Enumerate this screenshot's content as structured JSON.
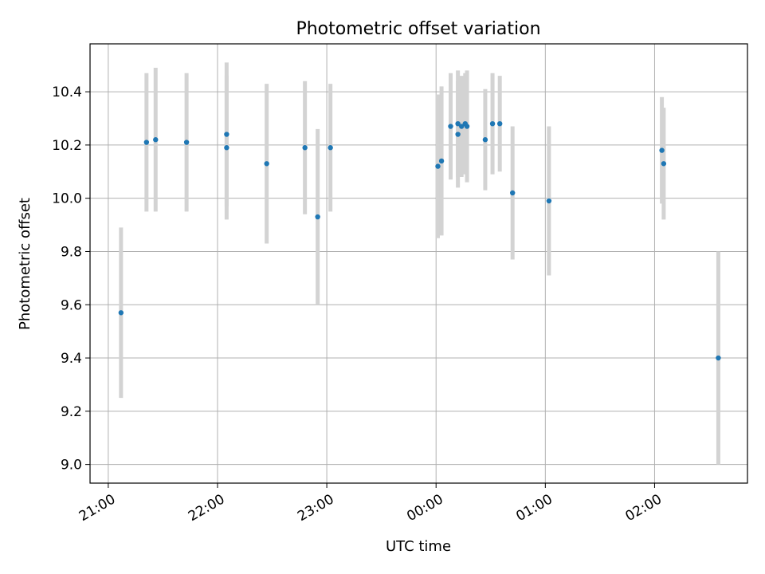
{
  "chart_data": {
    "type": "scatter",
    "title": "Photometric offset variation",
    "xlabel": "UTC time",
    "ylabel": "Photometric offset",
    "x_tick_labels": [
      "21:00",
      "22:00",
      "23:00",
      "00:00",
      "01:00",
      "02:00"
    ],
    "x_ticks": [
      "2000-01-01T21:00",
      "2000-01-01T22:00",
      "2000-01-01T23:00",
      "2000-01-02T00:00",
      "2000-01-02T01:00",
      "2000-01-02T02:00"
    ],
    "xlim": [
      "2000-01-01T20:50",
      "2000-01-02T02:51"
    ],
    "y_ticks": [
      9.0,
      9.2,
      9.4,
      9.6,
      9.8,
      10.0,
      10.2,
      10.4
    ],
    "ylim": [
      8.93,
      10.58
    ],
    "grid": true,
    "marker_color": "#1f77b4",
    "errorbar_color": "#d3d3d3",
    "points": [
      {
        "t": "2000-01-01T21:07",
        "y": 9.57,
        "err": 0.32
      },
      {
        "t": "2000-01-01T21:21",
        "y": 10.21,
        "err": 0.26
      },
      {
        "t": "2000-01-01T21:26",
        "y": 10.22,
        "err": 0.27
      },
      {
        "t": "2000-01-01T21:43",
        "y": 10.21,
        "err": 0.26
      },
      {
        "t": "2000-01-01T22:05",
        "y": 10.19,
        "err": 0.27
      },
      {
        "t": "2000-01-01T22:05",
        "y": 10.24,
        "err": 0.27
      },
      {
        "t": "2000-01-01T22:27",
        "y": 10.13,
        "err": 0.3
      },
      {
        "t": "2000-01-01T22:48",
        "y": 10.19,
        "err": 0.25
      },
      {
        "t": "2000-01-01T22:55",
        "y": 9.93,
        "err": 0.33
      },
      {
        "t": "2000-01-01T23:02",
        "y": 10.19,
        "err": 0.24
      },
      {
        "t": "2000-01-02T00:01",
        "y": 10.12,
        "err": 0.27
      },
      {
        "t": "2000-01-02T00:03",
        "y": 10.14,
        "err": 0.28
      },
      {
        "t": "2000-01-02T00:08",
        "y": 10.27,
        "err": 0.2
      },
      {
        "t": "2000-01-02T00:12",
        "y": 10.28,
        "err": 0.2
      },
      {
        "t": "2000-01-02T00:12",
        "y": 10.24,
        "err": 0.2
      },
      {
        "t": "2000-01-02T00:14",
        "y": 10.27,
        "err": 0.19
      },
      {
        "t": "2000-01-02T00:16",
        "y": 10.28,
        "err": 0.19
      },
      {
        "t": "2000-01-02T00:17",
        "y": 10.27,
        "err": 0.21
      },
      {
        "t": "2000-01-02T00:27",
        "y": 10.22,
        "err": 0.19
      },
      {
        "t": "2000-01-02T00:31",
        "y": 10.28,
        "err": 0.19
      },
      {
        "t": "2000-01-02T00:35",
        "y": 10.28,
        "err": 0.18
      },
      {
        "t": "2000-01-02T00:42",
        "y": 10.02,
        "err": 0.25
      },
      {
        "t": "2000-01-02T01:02",
        "y": 9.99,
        "err": 0.28
      },
      {
        "t": "2000-01-02T02:04",
        "y": 10.18,
        "err": 0.2
      },
      {
        "t": "2000-01-02T02:05",
        "y": 10.13,
        "err": 0.21
      },
      {
        "t": "2000-01-02T02:35",
        "y": 9.4,
        "err": 0.4
      }
    ]
  }
}
